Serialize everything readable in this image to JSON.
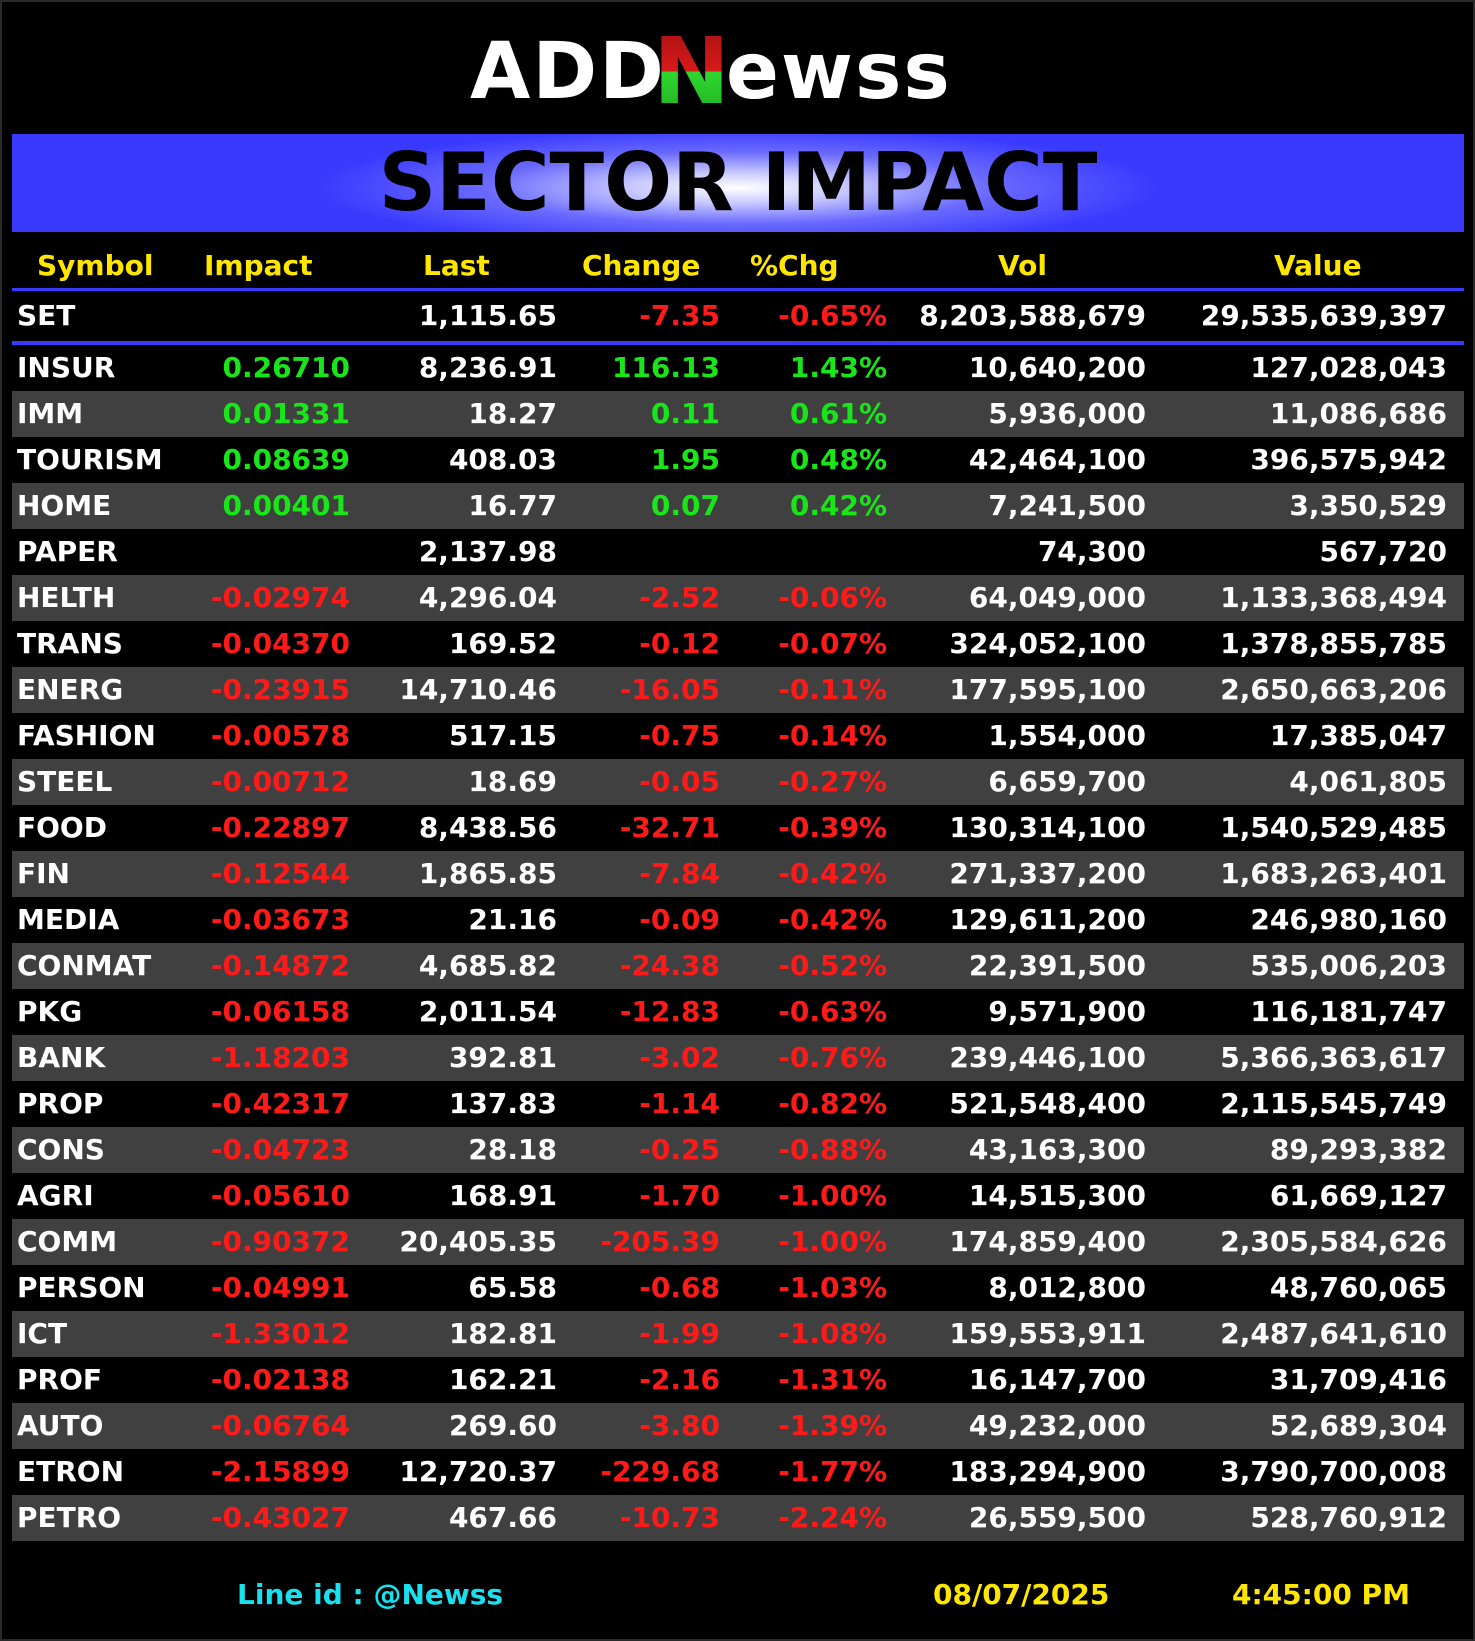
{
  "logo": {
    "text_left": "ADD",
    "text_mid": "N",
    "text_right": "ewss"
  },
  "title": "SECTOR IMPACT",
  "columns": [
    "Symbol",
    "Impact",
    "Last",
    "Change",
    "%Chg",
    "Vol",
    "Value"
  ],
  "index_row": {
    "symbol": "SET",
    "impact": "",
    "last": "1,115.65",
    "change": "-7.35",
    "pct": "-0.65%",
    "vol": "8,203,588,679",
    "value": "29,535,639,397"
  },
  "rows": [
    {
      "symbol": "INSUR",
      "impact": "0.26710",
      "last": "8,236.91",
      "change": "116.13",
      "pct": "1.43%",
      "vol": "10,640,200",
      "value": "127,028,043",
      "dir": "pos"
    },
    {
      "symbol": "IMM",
      "impact": "0.01331",
      "last": "18.27",
      "change": "0.11",
      "pct": "0.61%",
      "vol": "5,936,000",
      "value": "11,086,686",
      "dir": "pos"
    },
    {
      "symbol": "TOURISM",
      "impact": "0.08639",
      "last": "408.03",
      "change": "1.95",
      "pct": "0.48%",
      "vol": "42,464,100",
      "value": "396,575,942",
      "dir": "pos"
    },
    {
      "symbol": "HOME",
      "impact": "0.00401",
      "last": "16.77",
      "change": "0.07",
      "pct": "0.42%",
      "vol": "7,241,500",
      "value": "3,350,529",
      "dir": "pos"
    },
    {
      "symbol": "PAPER",
      "impact": "",
      "last": "2,137.98",
      "change": "",
      "pct": "",
      "vol": "74,300",
      "value": "567,720",
      "dir": "flat"
    },
    {
      "symbol": "HELTH",
      "impact": "-0.02974",
      "last": "4,296.04",
      "change": "-2.52",
      "pct": "-0.06%",
      "vol": "64,049,000",
      "value": "1,133,368,494",
      "dir": "neg"
    },
    {
      "symbol": "TRANS",
      "impact": "-0.04370",
      "last": "169.52",
      "change": "-0.12",
      "pct": "-0.07%",
      "vol": "324,052,100",
      "value": "1,378,855,785",
      "dir": "neg"
    },
    {
      "symbol": "ENERG",
      "impact": "-0.23915",
      "last": "14,710.46",
      "change": "-16.05",
      "pct": "-0.11%",
      "vol": "177,595,100",
      "value": "2,650,663,206",
      "dir": "neg"
    },
    {
      "symbol": "FASHION",
      "impact": "-0.00578",
      "last": "517.15",
      "change": "-0.75",
      "pct": "-0.14%",
      "vol": "1,554,000",
      "value": "17,385,047",
      "dir": "neg"
    },
    {
      "symbol": "STEEL",
      "impact": "-0.00712",
      "last": "18.69",
      "change": "-0.05",
      "pct": "-0.27%",
      "vol": "6,659,700",
      "value": "4,061,805",
      "dir": "neg"
    },
    {
      "symbol": "FOOD",
      "impact": "-0.22897",
      "last": "8,438.56",
      "change": "-32.71",
      "pct": "-0.39%",
      "vol": "130,314,100",
      "value": "1,540,529,485",
      "dir": "neg"
    },
    {
      "symbol": "FIN",
      "impact": "-0.12544",
      "last": "1,865.85",
      "change": "-7.84",
      "pct": "-0.42%",
      "vol": "271,337,200",
      "value": "1,683,263,401",
      "dir": "neg"
    },
    {
      "symbol": "MEDIA",
      "impact": "-0.03673",
      "last": "21.16",
      "change": "-0.09",
      "pct": "-0.42%",
      "vol": "129,611,200",
      "value": "246,980,160",
      "dir": "neg"
    },
    {
      "symbol": "CONMAT",
      "impact": "-0.14872",
      "last": "4,685.82",
      "change": "-24.38",
      "pct": "-0.52%",
      "vol": "22,391,500",
      "value": "535,006,203",
      "dir": "neg"
    },
    {
      "symbol": "PKG",
      "impact": "-0.06158",
      "last": "2,011.54",
      "change": "-12.83",
      "pct": "-0.63%",
      "vol": "9,571,900",
      "value": "116,181,747",
      "dir": "neg"
    },
    {
      "symbol": "BANK",
      "impact": "-1.18203",
      "last": "392.81",
      "change": "-3.02",
      "pct": "-0.76%",
      "vol": "239,446,100",
      "value": "5,366,363,617",
      "dir": "neg"
    },
    {
      "symbol": "PROP",
      "impact": "-0.42317",
      "last": "137.83",
      "change": "-1.14",
      "pct": "-0.82%",
      "vol": "521,548,400",
      "value": "2,115,545,749",
      "dir": "neg"
    },
    {
      "symbol": "CONS",
      "impact": "-0.04723",
      "last": "28.18",
      "change": "-0.25",
      "pct": "-0.88%",
      "vol": "43,163,300",
      "value": "89,293,382",
      "dir": "neg"
    },
    {
      "symbol": "AGRI",
      "impact": "-0.05610",
      "last": "168.91",
      "change": "-1.70",
      "pct": "-1.00%",
      "vol": "14,515,300",
      "value": "61,669,127",
      "dir": "neg"
    },
    {
      "symbol": "COMM",
      "impact": "-0.90372",
      "last": "20,405.35",
      "change": "-205.39",
      "pct": "-1.00%",
      "vol": "174,859,400",
      "value": "2,305,584,626",
      "dir": "neg"
    },
    {
      "symbol": "PERSON",
      "impact": "-0.04991",
      "last": "65.58",
      "change": "-0.68",
      "pct": "-1.03%",
      "vol": "8,012,800",
      "value": "48,760,065",
      "dir": "neg"
    },
    {
      "symbol": "ICT",
      "impact": "-1.33012",
      "last": "182.81",
      "change": "-1.99",
      "pct": "-1.08%",
      "vol": "159,553,911",
      "value": "2,487,641,610",
      "dir": "neg"
    },
    {
      "symbol": "PROF",
      "impact": "-0.02138",
      "last": "162.21",
      "change": "-2.16",
      "pct": "-1.31%",
      "vol": "16,147,700",
      "value": "31,709,416",
      "dir": "neg"
    },
    {
      "symbol": "AUTO",
      "impact": "-0.06764",
      "last": "269.60",
      "change": "-3.80",
      "pct": "-1.39%",
      "vol": "49,232,000",
      "value": "52,689,304",
      "dir": "neg"
    },
    {
      "symbol": "ETRON",
      "impact": "-2.15899",
      "last": "12,720.37",
      "change": "-229.68",
      "pct": "-1.77%",
      "vol": "183,294,900",
      "value": "3,790,700,008",
      "dir": "neg"
    },
    {
      "symbol": "PETRO",
      "impact": "-0.43027",
      "last": "467.66",
      "change": "-10.73",
      "pct": "-2.24%",
      "vol": "26,559,500",
      "value": "528,760,912",
      "dir": "neg"
    }
  ],
  "footer": {
    "line_id": "Line id  : @Newss",
    "date": "08/07/2025",
    "time": "4:45:00 PM"
  },
  "colors": {
    "positive": "#19e619",
    "negative": "#ff1a1a",
    "header": "#ffe600",
    "accent": "#3a3aff",
    "footer_link": "#18e0ee"
  }
}
